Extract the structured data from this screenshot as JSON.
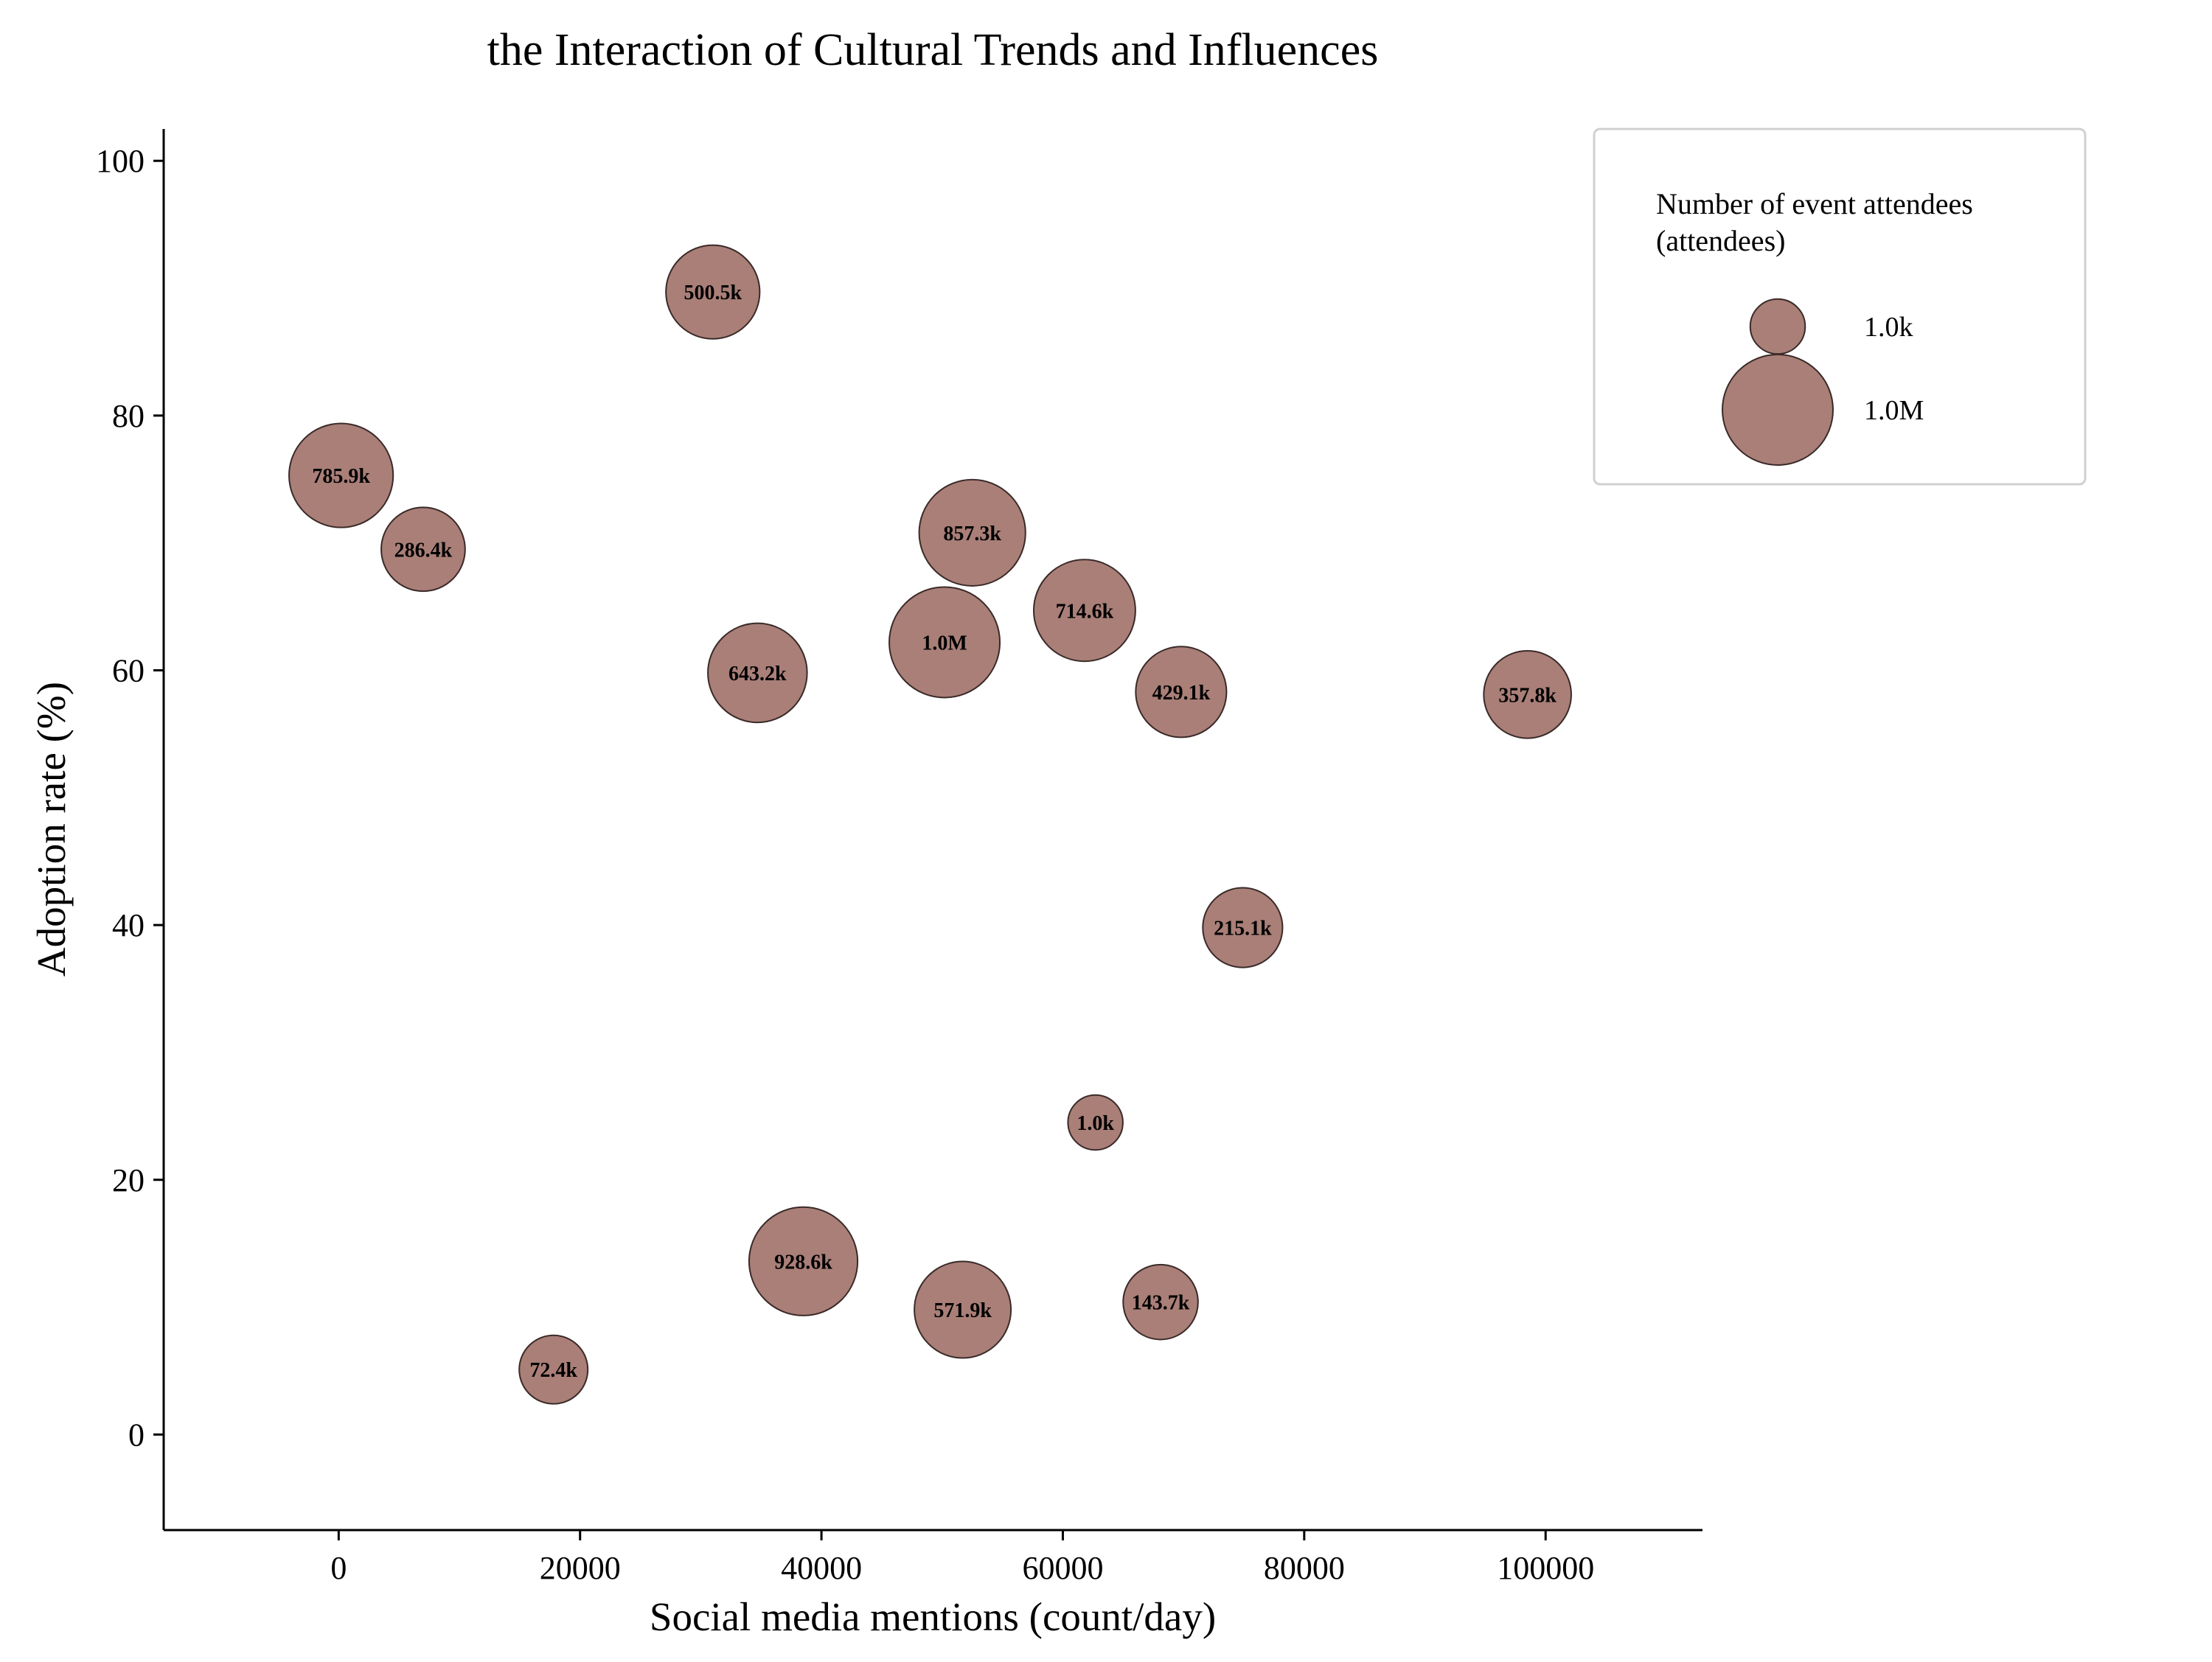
{
  "chart_data": {
    "type": "scatter",
    "title": "the Interaction of Cultural Trends and Influences",
    "xlabel": "Social media mentions (count/day)",
    "ylabel": "Adoption rate (%)",
    "xlim": [
      -14500,
      113000
    ],
    "ylim": [
      -7.5,
      102.5
    ],
    "xticks": [
      0,
      20000,
      40000,
      60000,
      80000,
      100000
    ],
    "yticks": [
      0,
      20,
      40,
      60,
      80,
      100
    ],
    "grid": false,
    "legend_position": "top-right",
    "bubble_color": "#a97f78",
    "bubble_edge_color": "#3a2a28",
    "size_legend": {
      "title_lines": [
        "Number of event attendees",
        "(attendees)"
      ],
      "entries": [
        {
          "label": "1.0k",
          "value": 1000
        },
        {
          "label": "1.0M",
          "value": 1000000
        }
      ]
    },
    "points": [
      {
        "x": 31000,
        "y": 89.7,
        "size": 500500,
        "label": "500.5k"
      },
      {
        "x": 200,
        "y": 75.3,
        "size": 785900,
        "label": "785.9k"
      },
      {
        "x": 7000,
        "y": 69.5,
        "size": 286400,
        "label": "286.4k"
      },
      {
        "x": 52500,
        "y": 70.8,
        "size": 857300,
        "label": "857.3k"
      },
      {
        "x": 61800,
        "y": 64.7,
        "size": 714600,
        "label": "714.6k"
      },
      {
        "x": 50200,
        "y": 62.2,
        "size": 1000000,
        "label": "1.0M"
      },
      {
        "x": 34700,
        "y": 59.8,
        "size": 643200,
        "label": "643.2k"
      },
      {
        "x": 69800,
        "y": 58.3,
        "size": 429100,
        "label": "429.1k"
      },
      {
        "x": 98500,
        "y": 58.1,
        "size": 357800,
        "label": "357.8k"
      },
      {
        "x": 74900,
        "y": 39.8,
        "size": 215100,
        "label": "215.1k"
      },
      {
        "x": 62700,
        "y": 24.5,
        "size": 1000,
        "label": "1.0k"
      },
      {
        "x": 38500,
        "y": 13.6,
        "size": 928600,
        "label": "928.6k"
      },
      {
        "x": 51700,
        "y": 9.8,
        "size": 571900,
        "label": "571.9k"
      },
      {
        "x": 68100,
        "y": 10.4,
        "size": 143700,
        "label": "143.7k"
      },
      {
        "x": 17800,
        "y": 5.1,
        "size": 72400,
        "label": "72.4k"
      }
    ]
  }
}
